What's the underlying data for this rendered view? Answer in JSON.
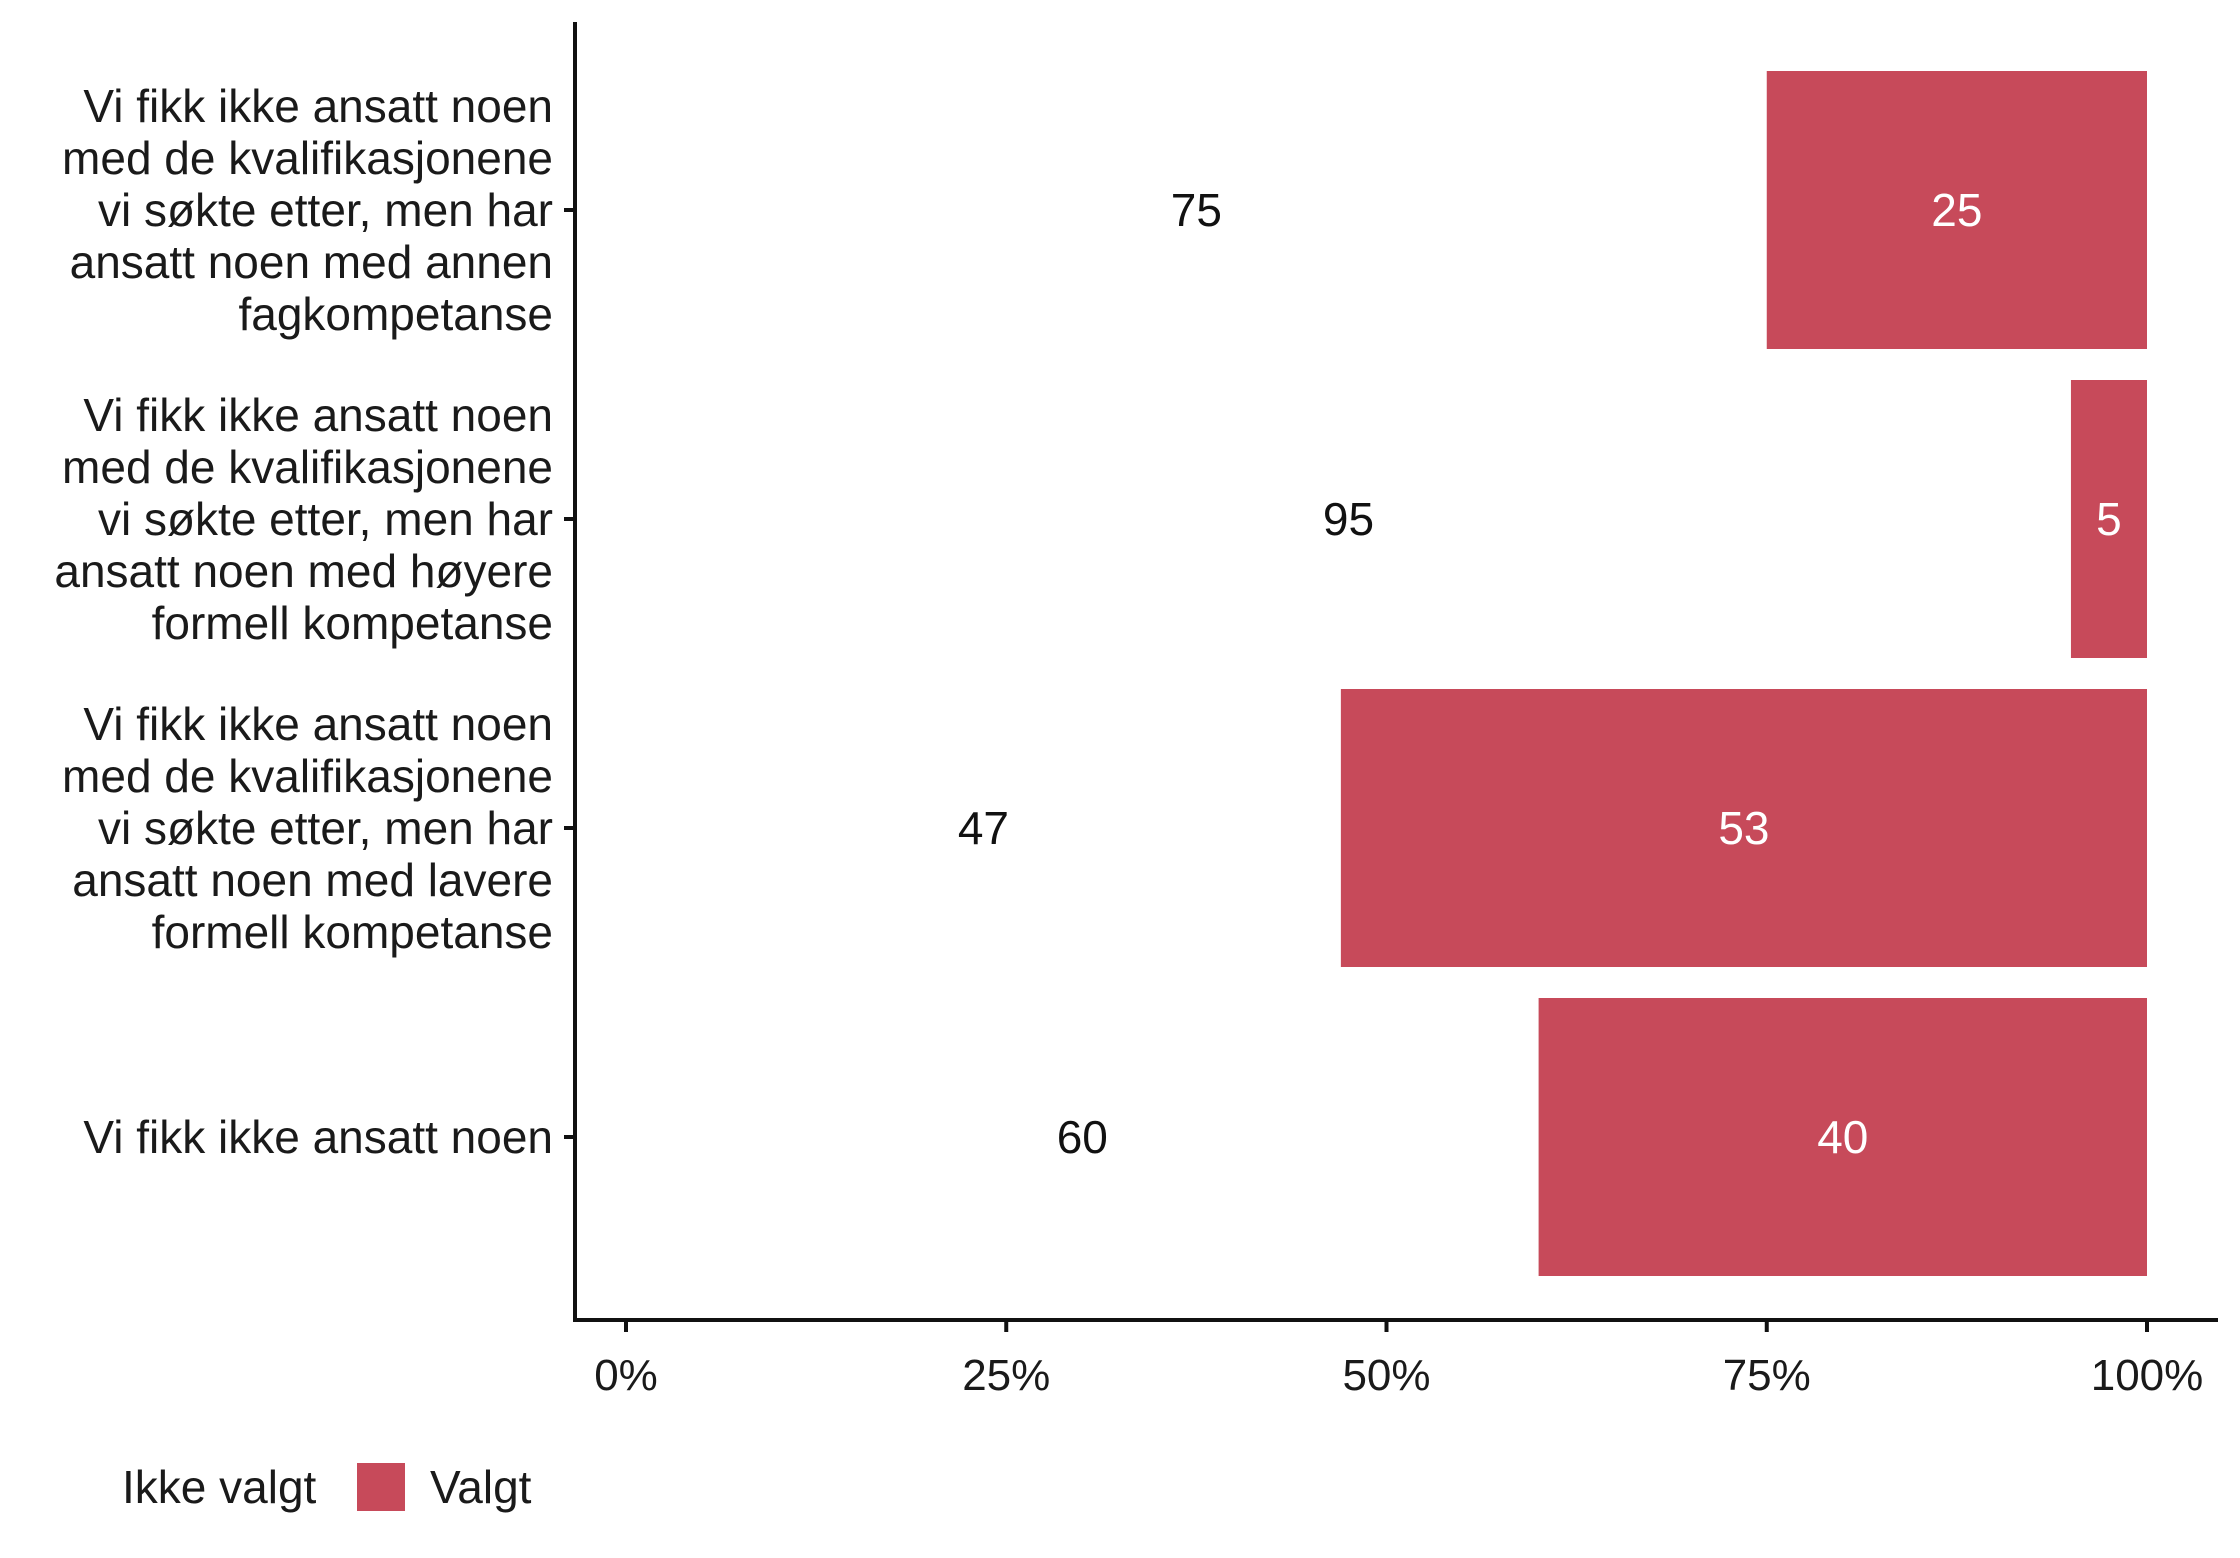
{
  "chart_data": {
    "type": "bar",
    "orientation": "horizontal",
    "stacked": true,
    "categories": [
      [
        "Vi fikk ikke ansatt noen",
        "med de kvalifikasjonene",
        "vi søkte etter, men har",
        "ansatt noen med annen",
        "fagkompetanse"
      ],
      [
        "Vi fikk ikke ansatt noen",
        "med de kvalifikasjonene",
        "vi søkte etter, men har",
        "ansatt noen med høyere",
        "formell kompetanse"
      ],
      [
        "Vi fikk ikke ansatt noen",
        "med de kvalifikasjonene",
        "vi søkte etter, men har",
        "ansatt noen med lavere",
        "formell kompetanse"
      ],
      [
        "Vi fikk ikke ansatt noen"
      ]
    ],
    "series": [
      {
        "name": "Ikke valgt",
        "values": [
          75,
          95,
          47,
          60
        ],
        "color": "#ffffff",
        "label_color": "#111111"
      },
      {
        "name": "Valgt",
        "values": [
          25,
          5,
          53,
          40
        ],
        "color": "#c74a5a",
        "label_color": "#ffffff"
      }
    ],
    "xlim": [
      0,
      100
    ],
    "xticks": [
      "0%",
      "25%",
      "50%",
      "75%",
      "100%"
    ],
    "xtick_values": [
      0,
      25,
      50,
      75,
      100
    ],
    "legend_position": "bottom-left",
    "grid": false
  }
}
